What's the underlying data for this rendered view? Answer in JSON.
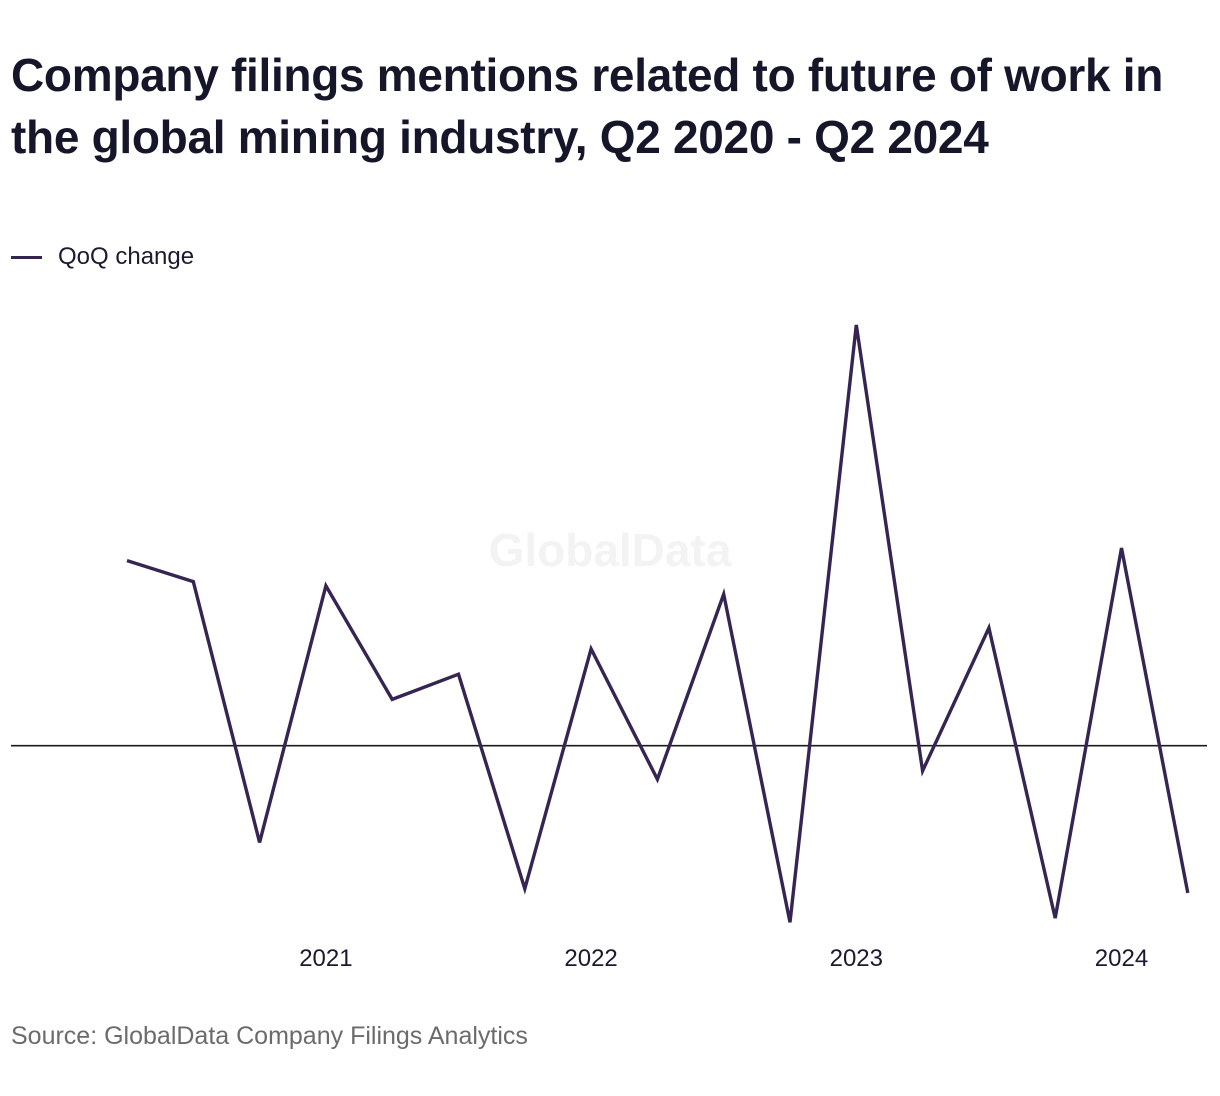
{
  "title": "Company filings mentions related to future of work in the global mining industry, Q2 2020 - Q2 2024",
  "legend": {
    "label": "QoQ change"
  },
  "source": "Source: GlobalData Company Filings Analytics",
  "watermark": "GlobalData",
  "colors": {
    "line": "#362553",
    "zero_line": "#1b1b1b",
    "tick_text": "#1b1b2f",
    "source_text": "#6b6b6b",
    "watermark": "#f3f3f3"
  },
  "chart_data": {
    "type": "line",
    "title": "Company filings mentions related to future of work in the global mining industry, Q2 2020 - Q2 2024",
    "xlabel": "",
    "ylabel": "",
    "x": [
      "Q2 2020",
      "Q3 2020",
      "Q4 2020",
      "Q1 2021",
      "Q2 2021",
      "Q3 2021",
      "Q4 2021",
      "Q1 2022",
      "Q2 2022",
      "Q3 2022",
      "Q4 2022",
      "Q1 2023",
      "Q2 2023",
      "Q3 2023",
      "Q4 2023",
      "Q1 2024",
      "Q2 2024"
    ],
    "x_tick_labels": [
      {
        "x": "Q1 2021",
        "label": "2021"
      },
      {
        "x": "Q1 2022",
        "label": "2022"
      },
      {
        "x": "Q1 2023",
        "label": "2023"
      },
      {
        "x": "Q1 2024",
        "label": "2024"
      }
    ],
    "series": [
      {
        "name": "QoQ change",
        "values": [
          0.44,
          0.39,
          -0.23,
          0.38,
          0.11,
          0.17,
          -0.34,
          0.23,
          -0.08,
          0.36,
          -0.42,
          1.0,
          -0.06,
          0.28,
          -0.41,
          0.47,
          -0.35
        ]
      }
    ],
    "ylim": [
      -0.5,
      1.0
    ],
    "zero_line": true,
    "grid": false,
    "y_axis_labels": false,
    "legend_position": "top-left"
  }
}
